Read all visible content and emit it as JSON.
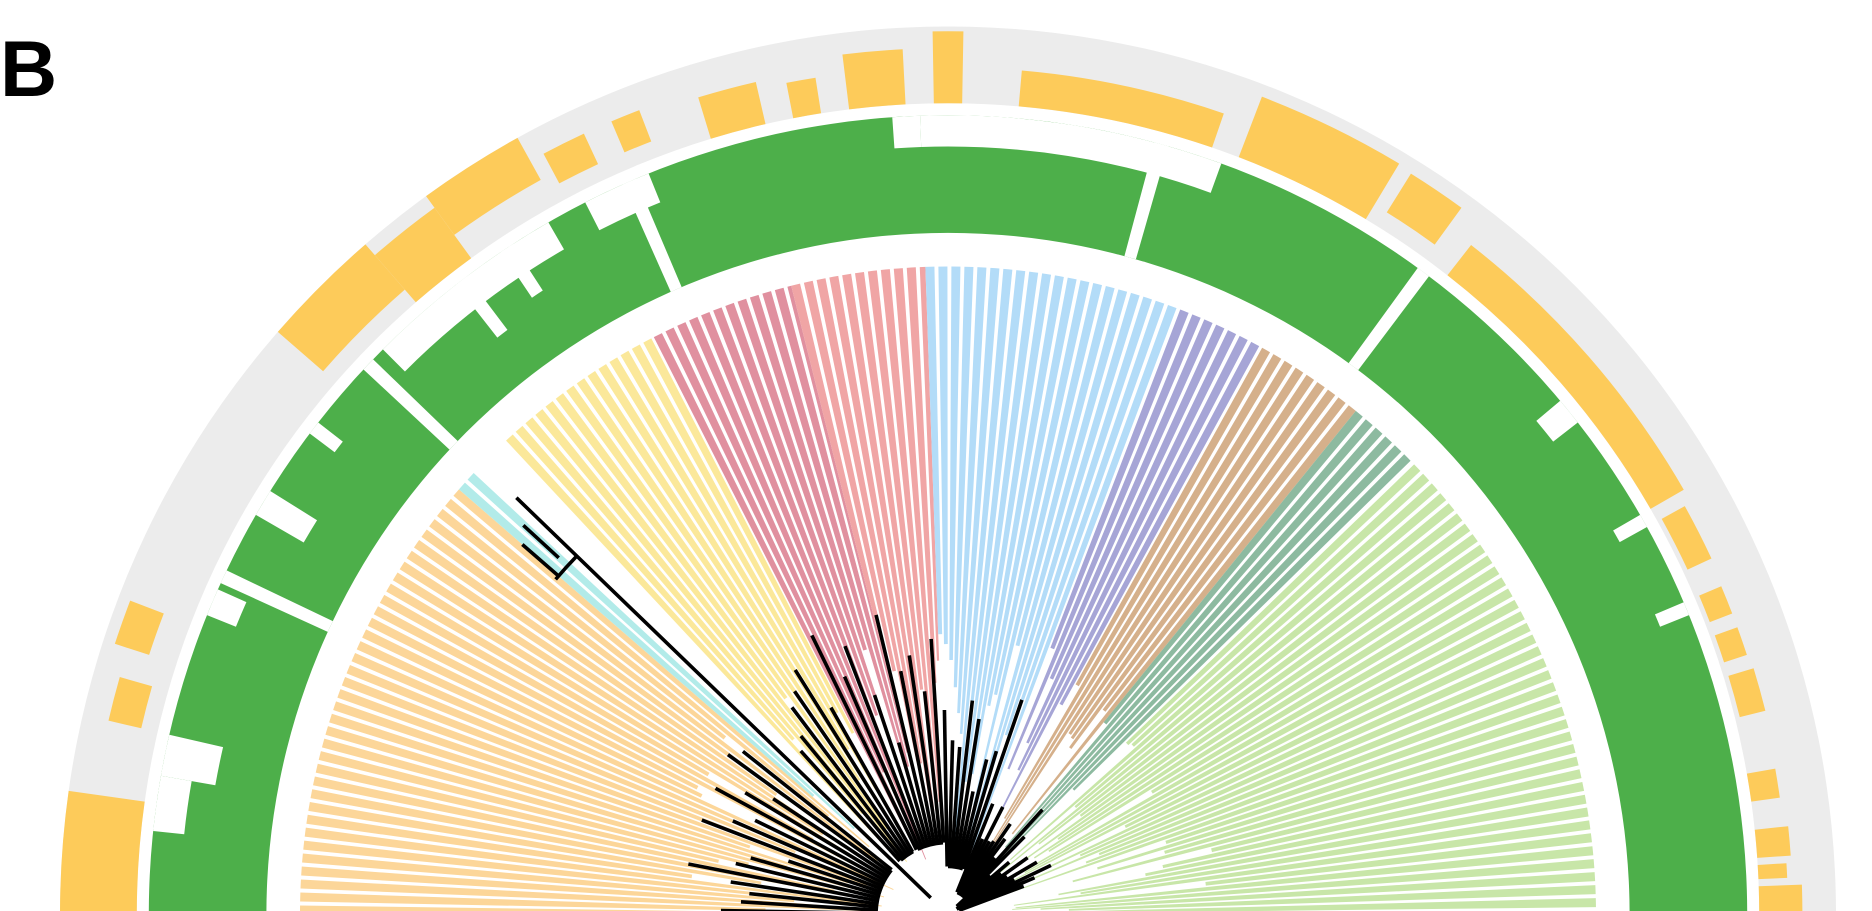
{
  "panel_label": "B"
}
